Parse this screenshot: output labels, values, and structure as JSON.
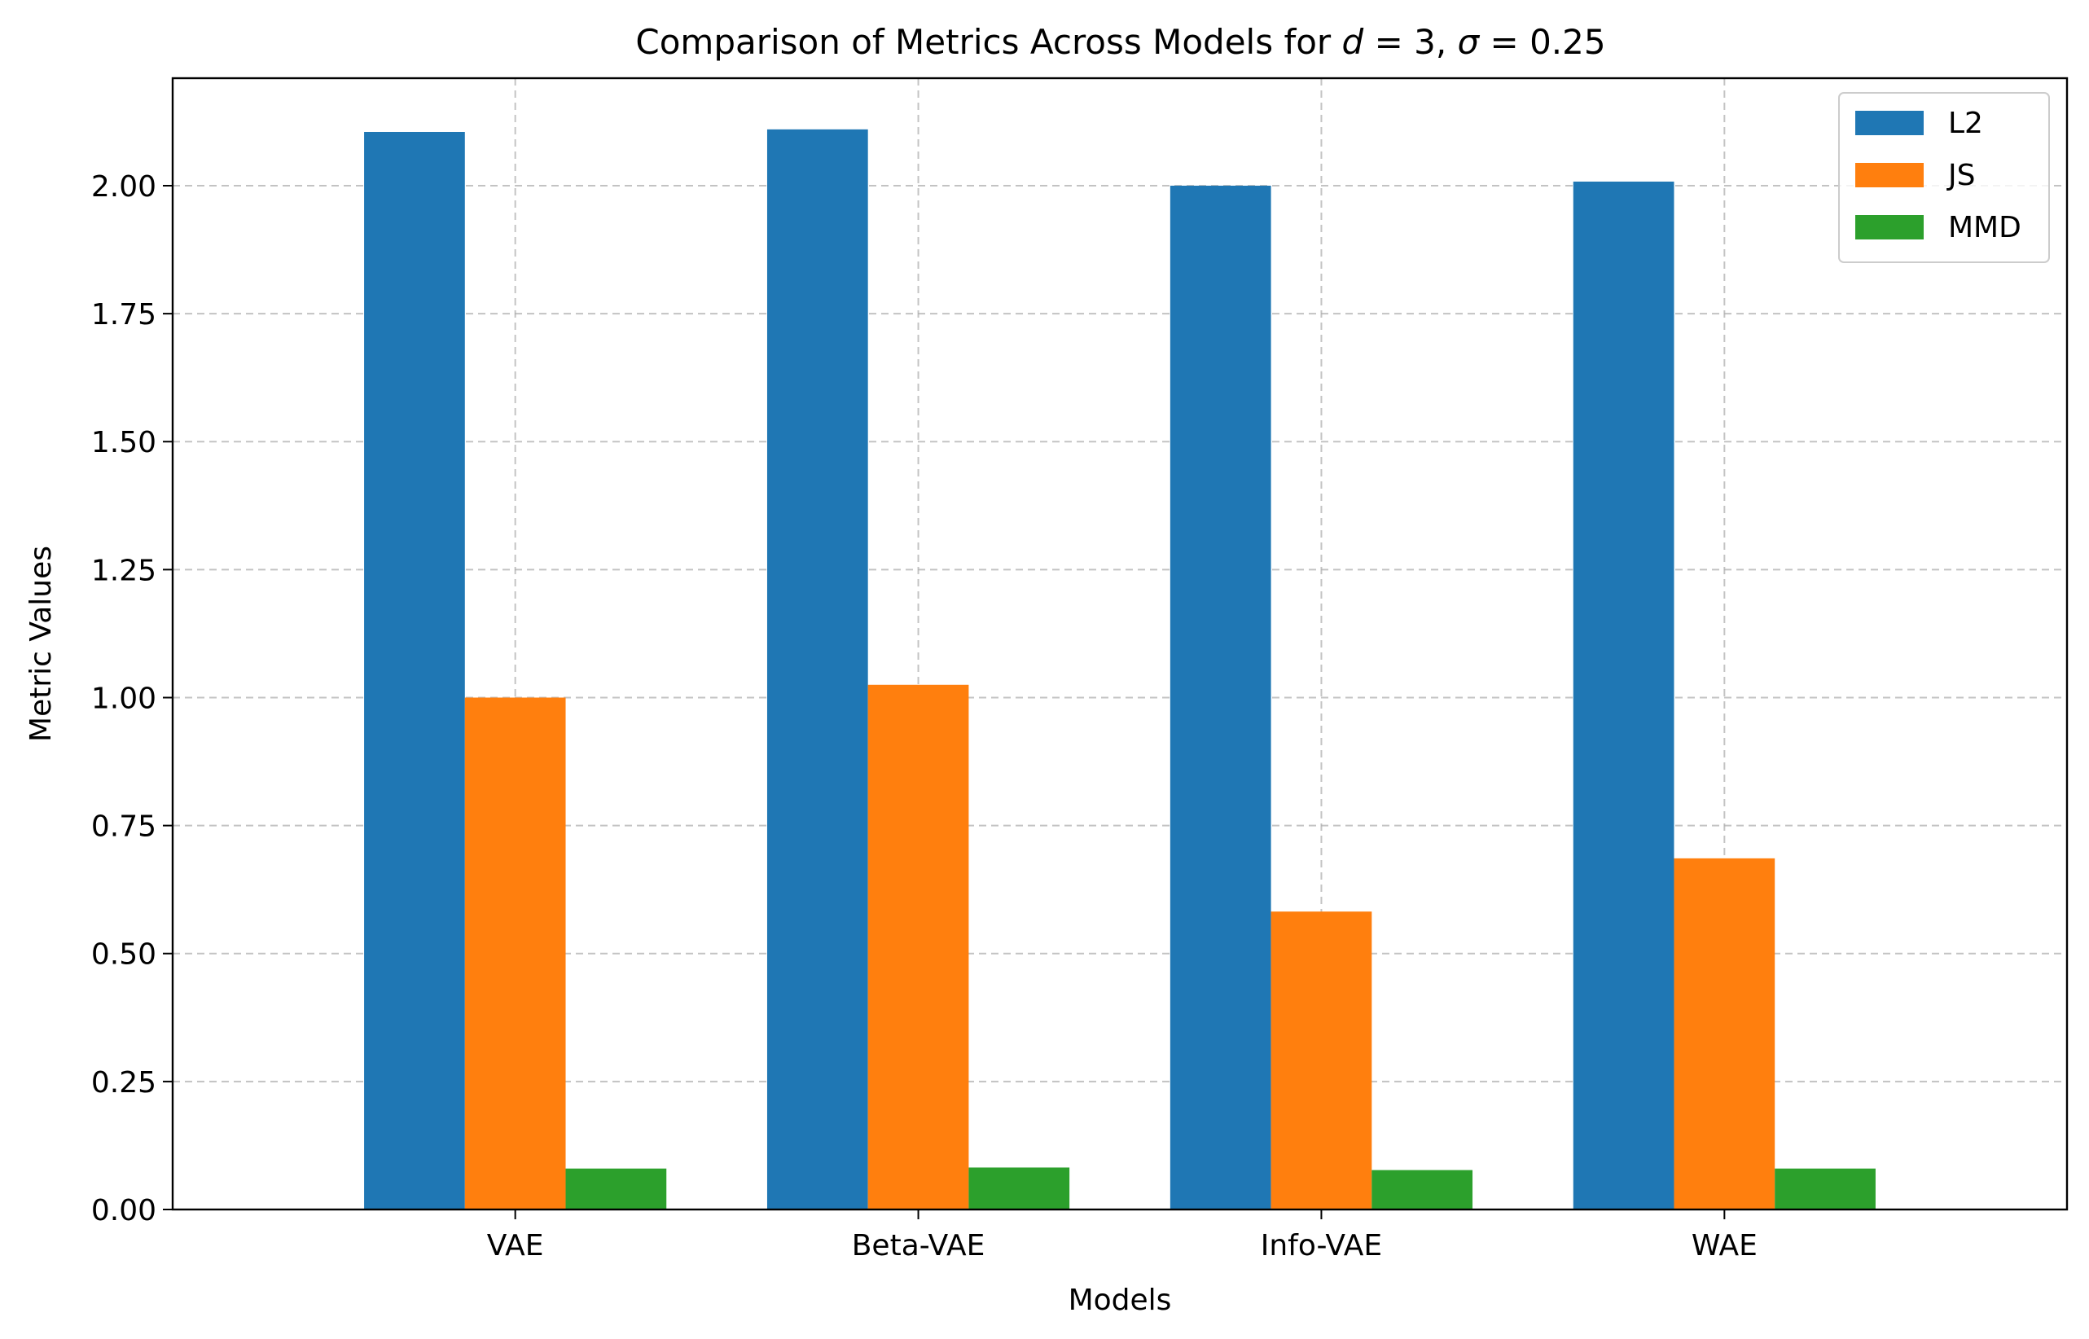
{
  "chart_data": {
    "type": "bar",
    "title": "Comparison of Metrics Across Models for d = 3, σ = 0.25",
    "title_parts": {
      "prefix": "Comparison of Metrics Across Models for ",
      "var1": "d",
      "eq1": " = 3, ",
      "var2": "σ",
      "eq2": " = 0.25"
    },
    "xlabel": "Models",
    "ylabel": "Metric Values",
    "categories": [
      "VAE",
      "Beta-VAE",
      "Info-VAE",
      "WAE"
    ],
    "series": [
      {
        "name": "L2",
        "color": "#1f77b4",
        "values": [
          2.105,
          2.11,
          2.0,
          2.008
        ]
      },
      {
        "name": "JS",
        "color": "#ff7f0e",
        "values": [
          1.0,
          1.025,
          0.582,
          0.686
        ]
      },
      {
        "name": "MMD",
        "color": "#2ca02c",
        "values": [
          0.08,
          0.082,
          0.077,
          0.08
        ]
      }
    ],
    "ylim": [
      0,
      2.21
    ],
    "yticks": [
      "0.00",
      "0.25",
      "0.50",
      "0.75",
      "1.00",
      "1.25",
      "1.50",
      "1.75",
      "2.00"
    ],
    "ytick_values": [
      0,
      0.25,
      0.5,
      0.75,
      1.0,
      1.25,
      1.5,
      1.75,
      2.0
    ],
    "grid": true,
    "grid_style": "dashed",
    "legend_position": "top-right"
  }
}
